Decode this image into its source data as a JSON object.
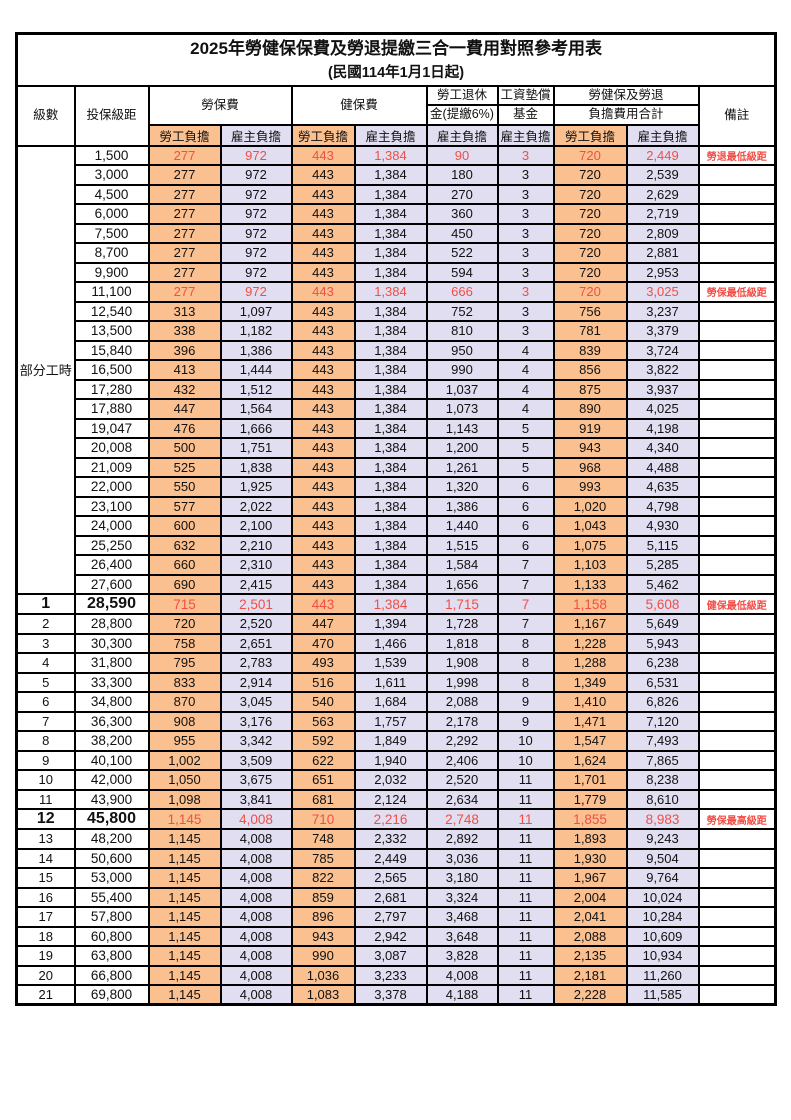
{
  "title": "2025年勞健保保費及勞退提繳三合一費用對照參考用表",
  "subtitle": "(民國114年1月1日起)",
  "header": {
    "level": "級數",
    "bracket": "投保級距",
    "labor": "勞保費",
    "health": "健保費",
    "pension_top": "勞工退休",
    "pension_bottom": "金(提繳6%)",
    "fund_top": "工資墊償",
    "fund_bottom": "基金",
    "total_top": "勞健保及勞退",
    "total_bottom": "負擔費用合計",
    "remark": "備註",
    "employee": "勞工負擔",
    "employer": "雇主負擔"
  },
  "colors": {
    "employee_bg": "#FAC090",
    "employer_bg": "#E0DEF0",
    "highlight_red": "#F24E46",
    "border": "#000000"
  },
  "rows": [
    {
      "lv": "部分工時",
      "span": 23,
      "br": "1,500",
      "v": [
        "277",
        "972",
        "443",
        "1,384",
        "90",
        "3",
        "720",
        "2,449"
      ],
      "rm": "勞退最低級距",
      "red": true
    },
    {
      "br": "3,000",
      "v": [
        "277",
        "972",
        "443",
        "1,384",
        "180",
        "3",
        "720",
        "2,539"
      ]
    },
    {
      "br": "4,500",
      "v": [
        "277",
        "972",
        "443",
        "1,384",
        "270",
        "3",
        "720",
        "2,629"
      ]
    },
    {
      "br": "6,000",
      "v": [
        "277",
        "972",
        "443",
        "1,384",
        "360",
        "3",
        "720",
        "2,719"
      ]
    },
    {
      "br": "7,500",
      "v": [
        "277",
        "972",
        "443",
        "1,384",
        "450",
        "3",
        "720",
        "2,809"
      ]
    },
    {
      "br": "8,700",
      "v": [
        "277",
        "972",
        "443",
        "1,384",
        "522",
        "3",
        "720",
        "2,881"
      ]
    },
    {
      "br": "9,900",
      "v": [
        "277",
        "972",
        "443",
        "1,384",
        "594",
        "3",
        "720",
        "2,953"
      ]
    },
    {
      "br": "11,100",
      "v": [
        "277",
        "972",
        "443",
        "1,384",
        "666",
        "3",
        "720",
        "3,025"
      ],
      "rm": "勞保最低級距",
      "red": true
    },
    {
      "br": "12,540",
      "v": [
        "313",
        "1,097",
        "443",
        "1,384",
        "752",
        "3",
        "756",
        "3,237"
      ]
    },
    {
      "br": "13,500",
      "v": [
        "338",
        "1,182",
        "443",
        "1,384",
        "810",
        "3",
        "781",
        "3,379"
      ]
    },
    {
      "br": "15,840",
      "v": [
        "396",
        "1,386",
        "443",
        "1,384",
        "950",
        "4",
        "839",
        "3,724"
      ]
    },
    {
      "br": "16,500",
      "v": [
        "413",
        "1,444",
        "443",
        "1,384",
        "990",
        "4",
        "856",
        "3,822"
      ]
    },
    {
      "br": "17,280",
      "v": [
        "432",
        "1,512",
        "443",
        "1,384",
        "1,037",
        "4",
        "875",
        "3,937"
      ]
    },
    {
      "br": "17,880",
      "v": [
        "447",
        "1,564",
        "443",
        "1,384",
        "1,073",
        "4",
        "890",
        "4,025"
      ]
    },
    {
      "br": "19,047",
      "v": [
        "476",
        "1,666",
        "443",
        "1,384",
        "1,143",
        "5",
        "919",
        "4,198"
      ]
    },
    {
      "br": "20,008",
      "v": [
        "500",
        "1,751",
        "443",
        "1,384",
        "1,200",
        "5",
        "943",
        "4,340"
      ]
    },
    {
      "br": "21,009",
      "v": [
        "525",
        "1,838",
        "443",
        "1,384",
        "1,261",
        "5",
        "968",
        "4,488"
      ]
    },
    {
      "br": "22,000",
      "v": [
        "550",
        "1,925",
        "443",
        "1,384",
        "1,320",
        "6",
        "993",
        "4,635"
      ]
    },
    {
      "br": "23,100",
      "v": [
        "577",
        "2,022",
        "443",
        "1,384",
        "1,386",
        "6",
        "1,020",
        "4,798"
      ]
    },
    {
      "br": "24,000",
      "v": [
        "600",
        "2,100",
        "443",
        "1,384",
        "1,440",
        "6",
        "1,043",
        "4,930"
      ]
    },
    {
      "br": "25,250",
      "v": [
        "632",
        "2,210",
        "443",
        "1,384",
        "1,515",
        "6",
        "1,075",
        "5,115"
      ]
    },
    {
      "br": "26,400",
      "v": [
        "660",
        "2,310",
        "443",
        "1,384",
        "1,584",
        "7",
        "1,103",
        "5,285"
      ]
    },
    {
      "br": "27,600",
      "v": [
        "690",
        "2,415",
        "443",
        "1,384",
        "1,656",
        "7",
        "1,133",
        "5,462"
      ]
    },
    {
      "lv": "1",
      "br": "28,590",
      "v": [
        "715",
        "2,501",
        "443",
        "1,384",
        "1,715",
        "7",
        "1,158",
        "5,608"
      ],
      "rm": "健保最低級距",
      "red": true,
      "big": true
    },
    {
      "lv": "2",
      "br": "28,800",
      "v": [
        "720",
        "2,520",
        "447",
        "1,394",
        "1,728",
        "7",
        "1,167",
        "5,649"
      ]
    },
    {
      "lv": "3",
      "br": "30,300",
      "v": [
        "758",
        "2,651",
        "470",
        "1,466",
        "1,818",
        "8",
        "1,228",
        "5,943"
      ]
    },
    {
      "lv": "4",
      "br": "31,800",
      "v": [
        "795",
        "2,783",
        "493",
        "1,539",
        "1,908",
        "8",
        "1,288",
        "6,238"
      ]
    },
    {
      "lv": "5",
      "br": "33,300",
      "v": [
        "833",
        "2,914",
        "516",
        "1,611",
        "1,998",
        "8",
        "1,349",
        "6,531"
      ]
    },
    {
      "lv": "6",
      "br": "34,800",
      "v": [
        "870",
        "3,045",
        "540",
        "1,684",
        "2,088",
        "9",
        "1,410",
        "6,826"
      ]
    },
    {
      "lv": "7",
      "br": "36,300",
      "v": [
        "908",
        "3,176",
        "563",
        "1,757",
        "2,178",
        "9",
        "1,471",
        "7,120"
      ]
    },
    {
      "lv": "8",
      "br": "38,200",
      "v": [
        "955",
        "3,342",
        "592",
        "1,849",
        "2,292",
        "10",
        "1,547",
        "7,493"
      ]
    },
    {
      "lv": "9",
      "br": "40,100",
      "v": [
        "1,002",
        "3,509",
        "622",
        "1,940",
        "2,406",
        "10",
        "1,624",
        "7,865"
      ]
    },
    {
      "lv": "10",
      "br": "42,000",
      "v": [
        "1,050",
        "3,675",
        "651",
        "2,032",
        "2,520",
        "11",
        "1,701",
        "8,238"
      ]
    },
    {
      "lv": "11",
      "br": "43,900",
      "v": [
        "1,098",
        "3,841",
        "681",
        "2,124",
        "2,634",
        "11",
        "1,779",
        "8,610"
      ]
    },
    {
      "lv": "12",
      "br": "45,800",
      "v": [
        "1,145",
        "4,008",
        "710",
        "2,216",
        "2,748",
        "11",
        "1,855",
        "8,983"
      ],
      "rm": "勞保最高級距",
      "red": true,
      "big": true
    },
    {
      "lv": "13",
      "br": "48,200",
      "v": [
        "1,145",
        "4,008",
        "748",
        "2,332",
        "2,892",
        "11",
        "1,893",
        "9,243"
      ]
    },
    {
      "lv": "14",
      "br": "50,600",
      "v": [
        "1,145",
        "4,008",
        "785",
        "2,449",
        "3,036",
        "11",
        "1,930",
        "9,504"
      ]
    },
    {
      "lv": "15",
      "br": "53,000",
      "v": [
        "1,145",
        "4,008",
        "822",
        "2,565",
        "3,180",
        "11",
        "1,967",
        "9,764"
      ]
    },
    {
      "lv": "16",
      "br": "55,400",
      "v": [
        "1,145",
        "4,008",
        "859",
        "2,681",
        "3,324",
        "11",
        "2,004",
        "10,024"
      ]
    },
    {
      "lv": "17",
      "br": "57,800",
      "v": [
        "1,145",
        "4,008",
        "896",
        "2,797",
        "3,468",
        "11",
        "2,041",
        "10,284"
      ]
    },
    {
      "lv": "18",
      "br": "60,800",
      "v": [
        "1,145",
        "4,008",
        "943",
        "2,942",
        "3,648",
        "11",
        "2,088",
        "10,609"
      ]
    },
    {
      "lv": "19",
      "br": "63,800",
      "v": [
        "1,145",
        "4,008",
        "990",
        "3,087",
        "3,828",
        "11",
        "2,135",
        "10,934"
      ]
    },
    {
      "lv": "20",
      "br": "66,800",
      "v": [
        "1,145",
        "4,008",
        "1,036",
        "3,233",
        "4,008",
        "11",
        "2,181",
        "11,260"
      ]
    },
    {
      "lv": "21",
      "br": "69,800",
      "v": [
        "1,145",
        "4,008",
        "1,083",
        "3,378",
        "4,188",
        "11",
        "2,228",
        "11,585"
      ]
    }
  ]
}
